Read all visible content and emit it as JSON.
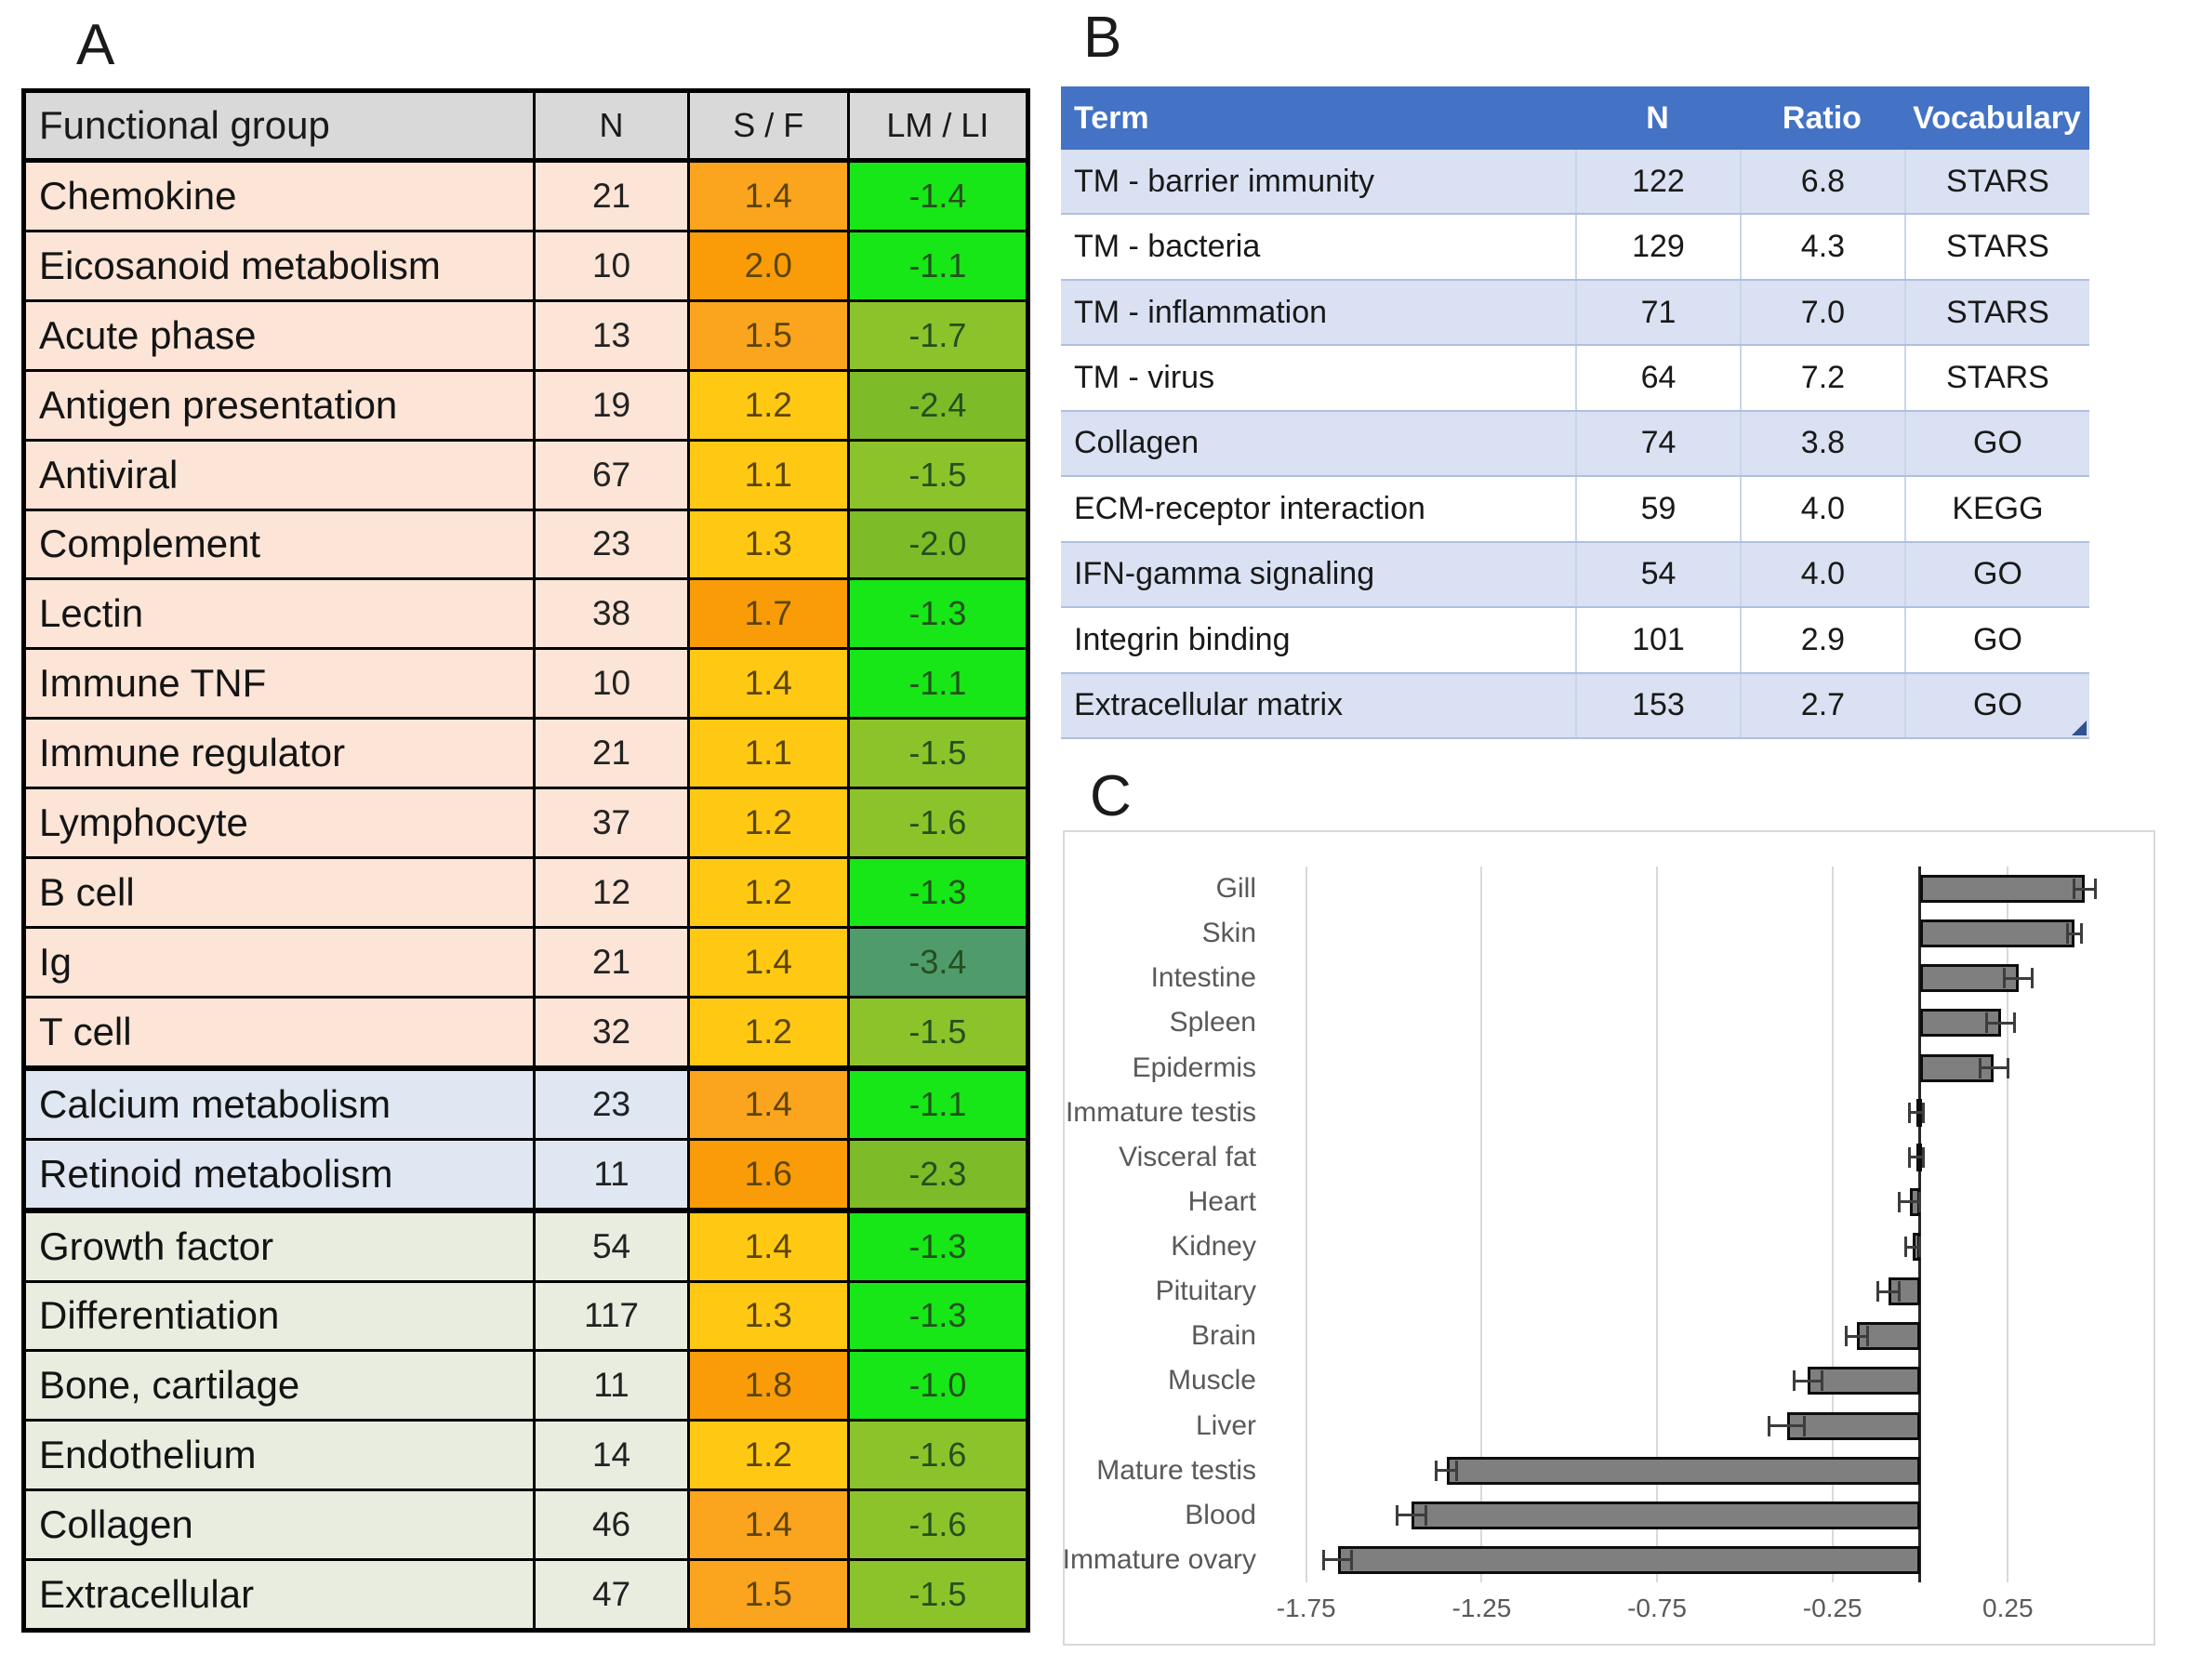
{
  "panels": {
    "a_label": "A",
    "b_label": "B",
    "c_label": "C"
  },
  "panelA": {
    "headers": [
      "Functional group",
      "N",
      "S / F",
      "LM / LI"
    ],
    "palette": {
      "header_bg": "#D9D9D9",
      "band": {
        "immune": "#FCE4D6",
        "metab": "#DEE7F2",
        "tissue": "#E9EDE0"
      },
      "sf": {
        "yellow": "#FFC913",
        "orange": "#FBA41D",
        "deep": "#F99C08"
      },
      "lm": {
        "bright": "#17E617",
        "olive": "#8CC32B",
        "olive2": "#7EBB28",
        "sea": "#4F9B6C"
      }
    },
    "rows": [
      {
        "label": "Chemokine",
        "n": "21",
        "sf": "1.4",
        "lm": "-1.4",
        "band": "immune",
        "sf_color": "orange",
        "lm_color": "bright",
        "group_end": false
      },
      {
        "label": "Eicosanoid metabolism",
        "n": "10",
        "sf": "2.0",
        "lm": "-1.1",
        "band": "immune",
        "sf_color": "deep",
        "lm_color": "bright",
        "group_end": false
      },
      {
        "label": "Acute phase",
        "n": "13",
        "sf": "1.5",
        "lm": "-1.7",
        "band": "immune",
        "sf_color": "orange",
        "lm_color": "olive",
        "group_end": false
      },
      {
        "label": "Antigen presentation",
        "n": "19",
        "sf": "1.2",
        "lm": "-2.4",
        "band": "immune",
        "sf_color": "yellow",
        "lm_color": "olive2",
        "group_end": false
      },
      {
        "label": "Antiviral",
        "n": "67",
        "sf": "1.1",
        "lm": "-1.5",
        "band": "immune",
        "sf_color": "yellow",
        "lm_color": "olive",
        "group_end": false
      },
      {
        "label": "Complement",
        "n": "23",
        "sf": "1.3",
        "lm": "-2.0",
        "band": "immune",
        "sf_color": "yellow",
        "lm_color": "olive2",
        "group_end": false
      },
      {
        "label": "Lectin",
        "n": "38",
        "sf": "1.7",
        "lm": "-1.3",
        "band": "immune",
        "sf_color": "deep",
        "lm_color": "bright",
        "group_end": false
      },
      {
        "label": "Immune TNF",
        "n": "10",
        "sf": "1.4",
        "lm": "-1.1",
        "band": "immune",
        "sf_color": "yellow",
        "lm_color": "bright",
        "group_end": false
      },
      {
        "label": "Immune regulator",
        "n": "21",
        "sf": "1.1",
        "lm": "-1.5",
        "band": "immune",
        "sf_color": "yellow",
        "lm_color": "olive",
        "group_end": false
      },
      {
        "label": "Lymphocyte",
        "n": "37",
        "sf": "1.2",
        "lm": "-1.6",
        "band": "immune",
        "sf_color": "yellow",
        "lm_color": "olive",
        "group_end": false
      },
      {
        "label": "B cell",
        "n": "12",
        "sf": "1.2",
        "lm": "-1.3",
        "band": "immune",
        "sf_color": "yellow",
        "lm_color": "bright",
        "group_end": false
      },
      {
        "label": "Ig",
        "n": "21",
        "sf": "1.4",
        "lm": "-3.4",
        "band": "immune",
        "sf_color": "yellow",
        "lm_color": "sea",
        "group_end": false
      },
      {
        "label": "T cell",
        "n": "32",
        "sf": "1.2",
        "lm": "-1.5",
        "band": "immune",
        "sf_color": "yellow",
        "lm_color": "olive",
        "group_end": true
      },
      {
        "label": "Calcium metabolism",
        "n": "23",
        "sf": "1.4",
        "lm": "-1.1",
        "band": "metab",
        "sf_color": "orange",
        "lm_color": "bright",
        "group_end": false
      },
      {
        "label": "Retinoid metabolism",
        "n": "11",
        "sf": "1.6",
        "lm": "-2.3",
        "band": "metab",
        "sf_color": "deep",
        "lm_color": "olive2",
        "group_end": true
      },
      {
        "label": "Growth factor",
        "n": "54",
        "sf": "1.4",
        "lm": "-1.3",
        "band": "tissue",
        "sf_color": "yellow",
        "lm_color": "bright",
        "group_end": false
      },
      {
        "label": "Differentiation",
        "n": "117",
        "sf": "1.3",
        "lm": "-1.3",
        "band": "tissue",
        "sf_color": "yellow",
        "lm_color": "bright",
        "group_end": false
      },
      {
        "label": "Bone, cartilage",
        "n": "11",
        "sf": "1.8",
        "lm": "-1.0",
        "band": "tissue",
        "sf_color": "deep",
        "lm_color": "bright",
        "group_end": false
      },
      {
        "label": "Endothelium",
        "n": "14",
        "sf": "1.2",
        "lm": "-1.6",
        "band": "tissue",
        "sf_color": "yellow",
        "lm_color": "olive",
        "group_end": false
      },
      {
        "label": "Collagen",
        "n": "46",
        "sf": "1.4",
        "lm": "-1.6",
        "band": "tissue",
        "sf_color": "orange",
        "lm_color": "olive",
        "group_end": false
      },
      {
        "label": "Extracellular",
        "n": "47",
        "sf": "1.5",
        "lm": "-1.5",
        "band": "tissue",
        "sf_color": "orange",
        "lm_color": "olive",
        "group_end": false
      }
    ]
  },
  "panelB": {
    "headers": [
      "Term",
      "N",
      "Ratio",
      "Vocabulary"
    ],
    "palette": {
      "header_bg": "#4472C4",
      "band": "#D9E1F2",
      "white": "#FFFFFF",
      "handle": "#35508F"
    },
    "rows": [
      {
        "term": "TM - barrier immunity",
        "n": "122",
        "ratio": "6.8",
        "vocab": "STARS"
      },
      {
        "term": "TM - bacteria",
        "n": "129",
        "ratio": "4.3",
        "vocab": "STARS"
      },
      {
        "term": "TM - inflammation",
        "n": "71",
        "ratio": "7.0",
        "vocab": "STARS"
      },
      {
        "term": "TM - virus",
        "n": "64",
        "ratio": "7.2",
        "vocab": "STARS"
      },
      {
        "term": "Collagen",
        "n": "74",
        "ratio": "3.8",
        "vocab": "GO"
      },
      {
        "term": "ECM-receptor interaction",
        "n": "59",
        "ratio": "4.0",
        "vocab": "KEGG"
      },
      {
        "term": "IFN-gamma signaling",
        "n": "54",
        "ratio": "4.0",
        "vocab": "GO"
      },
      {
        "term": "Integrin binding",
        "n": "101",
        "ratio": "2.9",
        "vocab": "GO"
      },
      {
        "term": "Extracellular matrix",
        "n": "153",
        "ratio": "2.7",
        "vocab": "GO"
      }
    ]
  },
  "chart_data": {
    "type": "bar",
    "orientation": "horizontal",
    "title": "",
    "xlabel": "",
    "ylabel": "",
    "categories": [
      "Gill",
      "Skin",
      "Intestine",
      "Spleen",
      "Epidermis",
      "Immature testis",
      "Visceral fat",
      "Heart",
      "Kidney",
      "Pituitary",
      "Brain",
      "Muscle",
      "Liver",
      "Mature testis",
      "Blood",
      "Immature ovary"
    ],
    "values": [
      0.47,
      0.44,
      0.28,
      0.23,
      0.21,
      -0.01,
      -0.01,
      -0.03,
      -0.02,
      -0.09,
      -0.18,
      -0.32,
      -0.38,
      -1.35,
      -1.45,
      -1.66
    ],
    "errors": [
      0.03,
      0.02,
      0.04,
      0.04,
      0.04,
      0.02,
      0.02,
      0.03,
      0.02,
      0.03,
      0.03,
      0.04,
      0.05,
      0.03,
      0.04,
      0.04
    ],
    "xticks": [
      -1.75,
      -1.25,
      -0.75,
      -0.25,
      0.25
    ],
    "xtick_labels": [
      "-1.75",
      "-1.25",
      "-0.75",
      "-0.25",
      "0.25"
    ],
    "xlim": [
      -1.85,
      0.66
    ],
    "grid": true,
    "legend_position": "none",
    "bar_color": "#7F7F7F",
    "bar_border_color": "#0D0D0D",
    "error_color": "#3D3D3D",
    "gridline_color": "#D9D9D9",
    "zero_line_color": "#262626",
    "label_color": "#595959"
  }
}
